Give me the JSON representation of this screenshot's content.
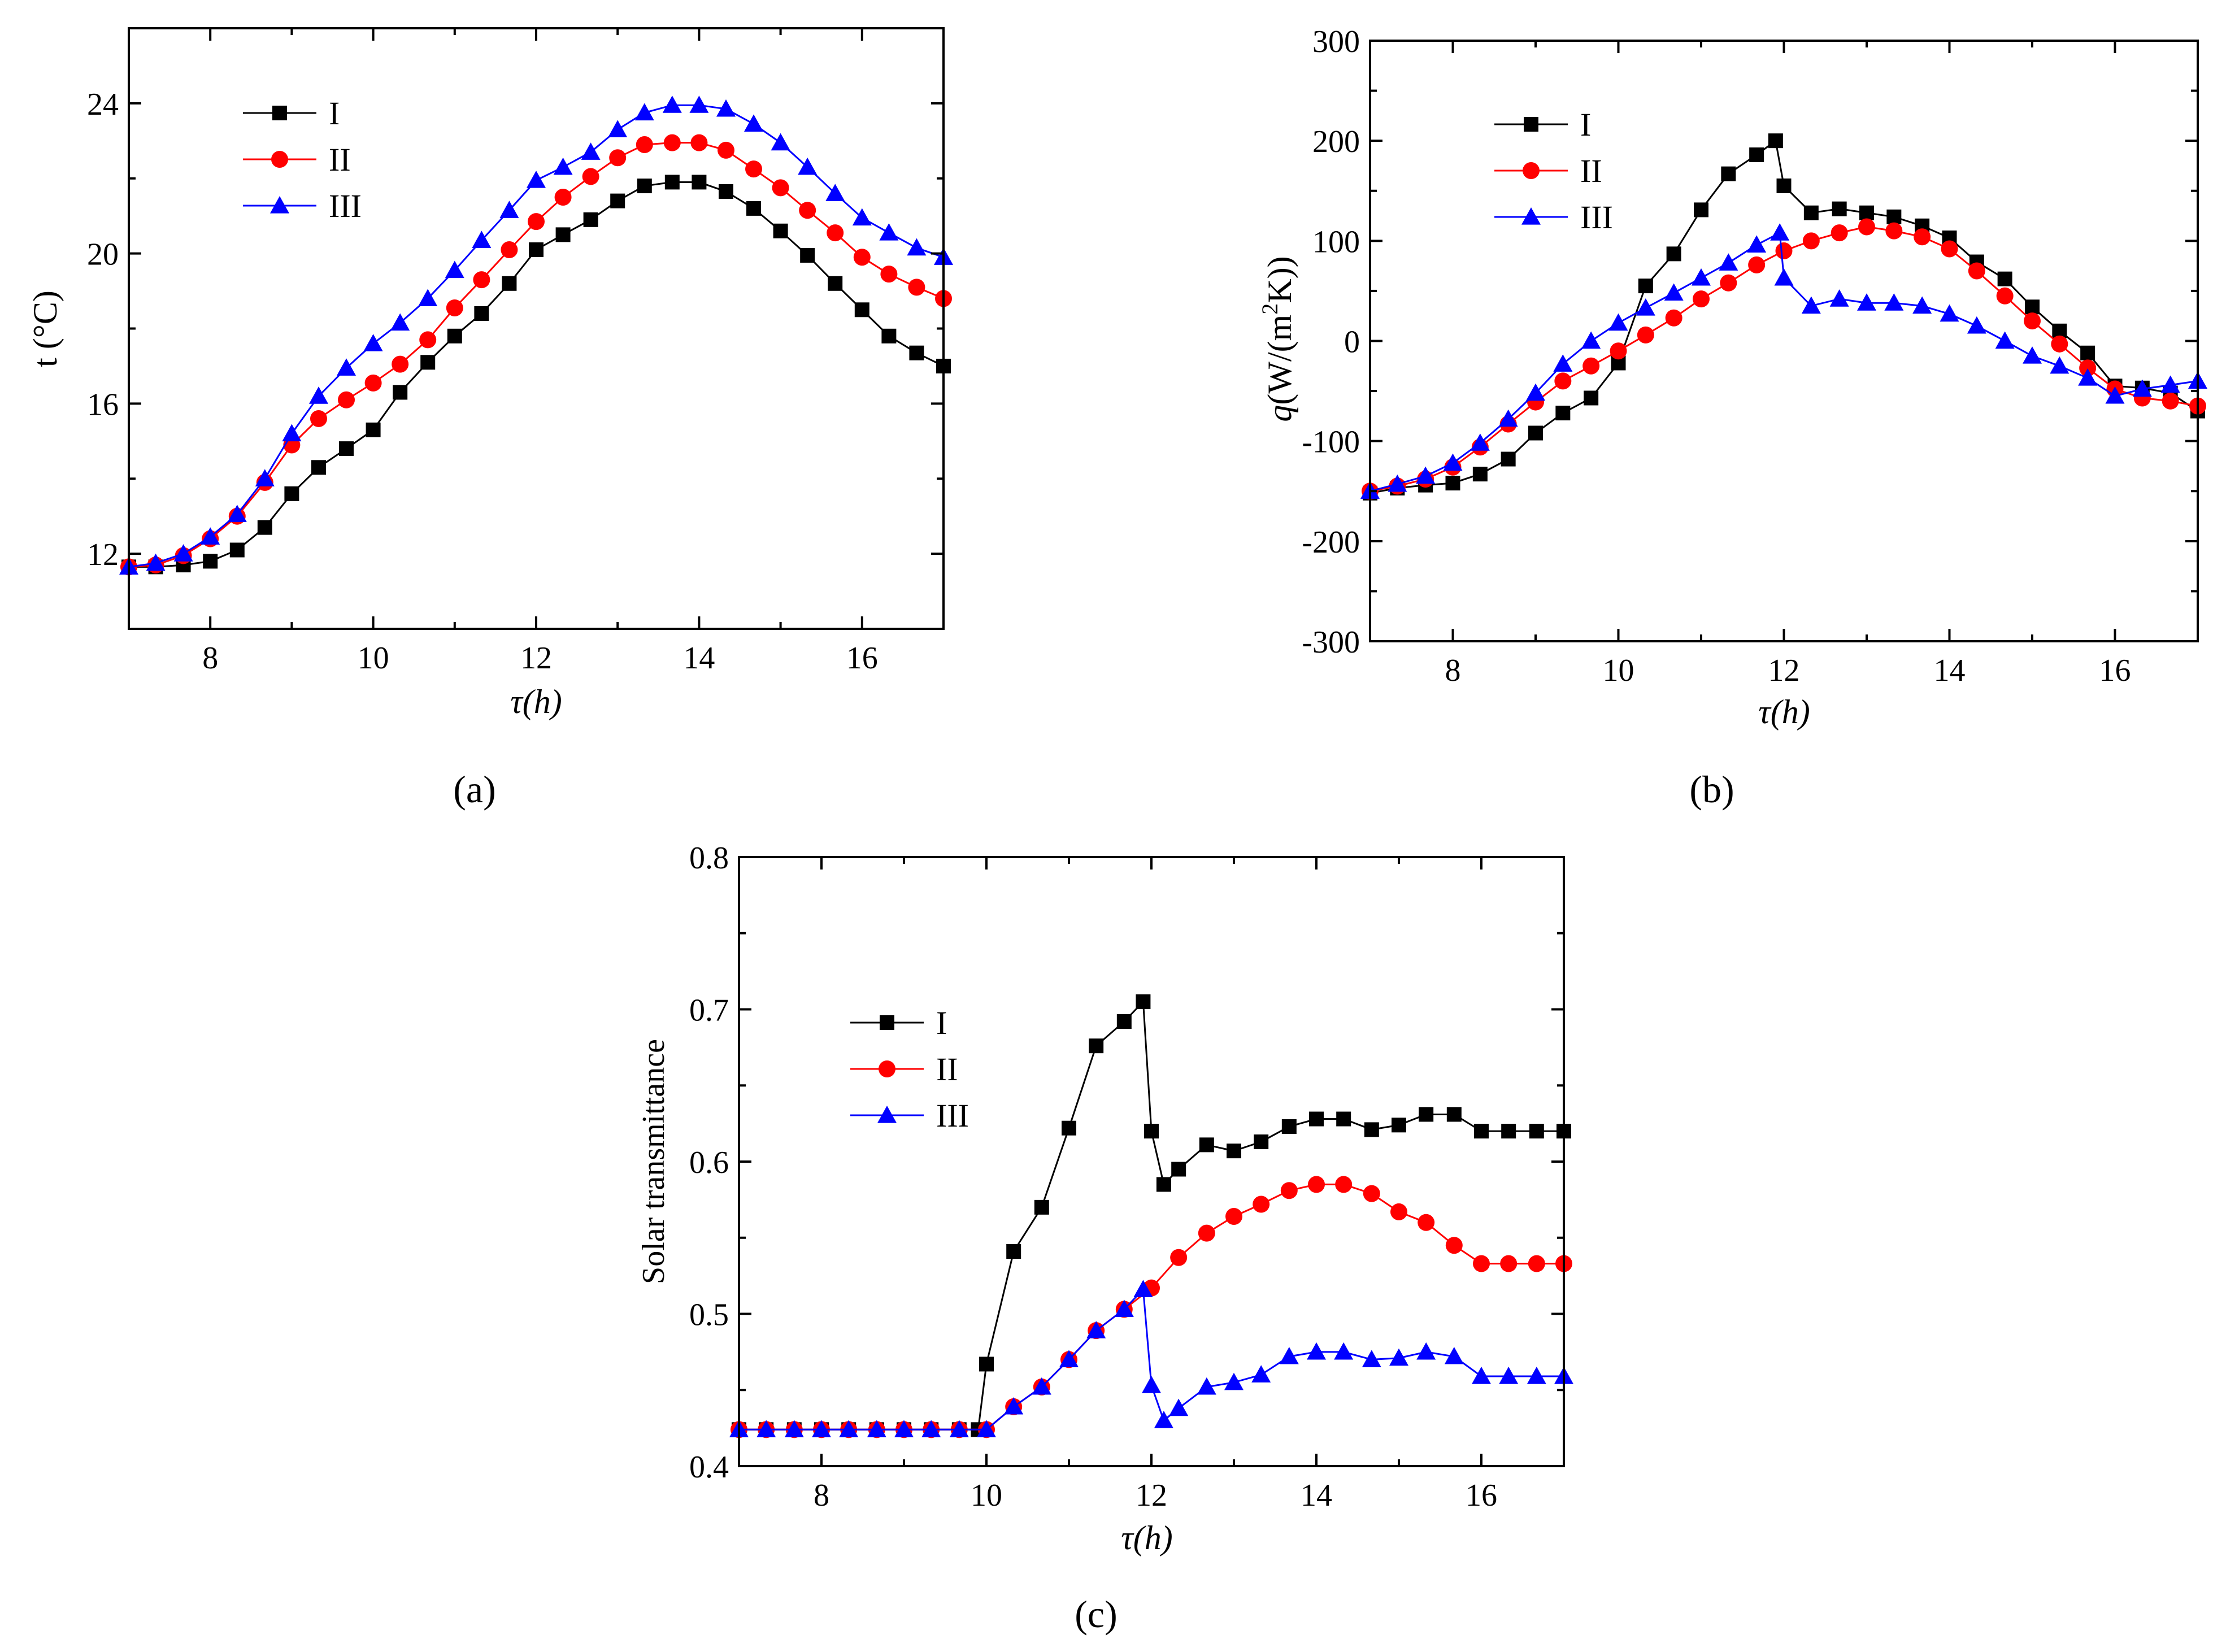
{
  "figure": {
    "panel_labels": [
      "(a)",
      "(b)",
      "(c)"
    ]
  },
  "chart_data": [
    {
      "type": "line",
      "panel": "(a)",
      "title": "",
      "xlabel": "τ(h)",
      "ylabel": "t (°C)",
      "xlim": [
        7,
        17
      ],
      "ylim": [
        10,
        26
      ],
      "xticks": [
        8,
        10,
        12,
        14,
        16
      ],
      "yticks": [
        12,
        16,
        20,
        24
      ],
      "legend_position": "top-left",
      "grid": false,
      "series": [
        {
          "name": "I",
          "marker": "square",
          "color": "#000000",
          "x": [
            7.0,
            7.33,
            7.67,
            8.0,
            8.33,
            8.67,
            9.0,
            9.33,
            9.67,
            10.0,
            10.33,
            10.67,
            11.0,
            11.33,
            11.67,
            12.0,
            12.33,
            12.67,
            13.0,
            13.33,
            13.67,
            14.0,
            14.33,
            14.67,
            15.0,
            15.33,
            15.67,
            16.0,
            16.33,
            16.67,
            17.0
          ],
          "y": [
            11.65,
            11.65,
            11.7,
            11.8,
            12.1,
            12.7,
            13.6,
            14.3,
            14.8,
            15.3,
            16.3,
            17.1,
            17.8,
            18.4,
            19.2,
            20.1,
            20.5,
            20.9,
            21.4,
            21.8,
            21.9,
            21.9,
            21.65,
            21.2,
            20.6,
            19.95,
            19.2,
            18.5,
            17.8,
            17.35,
            17.0
          ]
        },
        {
          "name": "II",
          "marker": "circle",
          "color": "#ff0000",
          "x": [
            7.0,
            7.33,
            7.67,
            8.0,
            8.33,
            8.67,
            9.0,
            9.33,
            9.67,
            10.0,
            10.33,
            10.67,
            11.0,
            11.33,
            11.67,
            12.0,
            12.33,
            12.67,
            13.0,
            13.33,
            13.67,
            14.0,
            14.33,
            14.67,
            15.0,
            15.33,
            15.67,
            16.0,
            16.33,
            16.67,
            17.0
          ],
          "y": [
            11.65,
            11.7,
            11.95,
            12.4,
            13.0,
            13.9,
            14.9,
            15.6,
            16.1,
            16.55,
            17.05,
            17.7,
            18.55,
            19.3,
            20.1,
            20.85,
            21.5,
            22.05,
            22.55,
            22.9,
            22.95,
            22.95,
            22.75,
            22.25,
            21.75,
            21.15,
            20.55,
            19.9,
            19.45,
            19.1,
            18.8
          ]
        },
        {
          "name": "III",
          "marker": "triangle",
          "color": "#0000ff",
          "x": [
            7.0,
            7.33,
            7.67,
            8.0,
            8.33,
            8.67,
            9.0,
            9.33,
            9.67,
            10.0,
            10.33,
            10.67,
            11.0,
            11.33,
            11.67,
            12.0,
            12.33,
            12.67,
            13.0,
            13.33,
            13.67,
            14.0,
            14.33,
            14.67,
            15.0,
            15.33,
            15.67,
            16.0,
            16.33,
            16.67,
            17.0
          ],
          "y": [
            11.65,
            11.75,
            12.0,
            12.45,
            13.05,
            14.0,
            15.2,
            16.2,
            16.95,
            17.6,
            18.15,
            18.8,
            19.55,
            20.35,
            21.15,
            21.95,
            22.3,
            22.7,
            23.3,
            23.75,
            23.95,
            23.95,
            23.85,
            23.45,
            22.95,
            22.3,
            21.6,
            20.95,
            20.55,
            20.15,
            19.9
          ]
        }
      ]
    },
    {
      "type": "line",
      "panel": "(b)",
      "title": "",
      "xlabel": "τ(h)",
      "ylabel": "q(W/(m2K))",
      "ylabel_parts": [
        "q",
        "(W/(m",
        "2",
        "K))"
      ],
      "xlim": [
        7,
        17
      ],
      "ylim": [
        -300,
        300
      ],
      "xticks": [
        8,
        10,
        12,
        14,
        16
      ],
      "yticks": [
        -300,
        -200,
        -100,
        0,
        100,
        200,
        300
      ],
      "legend_position": "top-left",
      "grid": false,
      "series": [
        {
          "name": "I",
          "marker": "square",
          "color": "#000000",
          "x": [
            7.0,
            7.33,
            7.67,
            8.0,
            8.33,
            8.67,
            9.0,
            9.33,
            9.67,
            10.0,
            10.33,
            10.67,
            11.0,
            11.33,
            11.67,
            11.9,
            12.0,
            12.33,
            12.67,
            13.0,
            13.33,
            13.67,
            14.0,
            14.33,
            14.67,
            15.0,
            15.33,
            15.67,
            16.0,
            16.33,
            16.67,
            17.0
          ],
          "y": [
            -152,
            -147,
            -144,
            -142,
            -133,
            -118,
            -92,
            -72,
            -57,
            -22,
            55,
            87,
            131,
            167,
            186,
            200,
            155,
            128,
            132,
            128,
            124,
            115,
            103,
            79,
            62,
            34,
            10,
            -12,
            -45,
            -47,
            -52,
            -70
          ]
        },
        {
          "name": "II",
          "marker": "circle",
          "color": "#ff0000",
          "x": [
            7.0,
            7.33,
            7.67,
            8.0,
            8.33,
            8.67,
            9.0,
            9.33,
            9.67,
            10.0,
            10.33,
            10.67,
            11.0,
            11.33,
            11.67,
            12.0,
            12.33,
            12.67,
            13.0,
            13.33,
            13.67,
            14.0,
            14.33,
            14.67,
            15.0,
            15.33,
            15.67,
            16.0,
            16.33,
            16.67,
            17.0
          ],
          "y": [
            -150,
            -145,
            -138,
            -126,
            -106,
            -83,
            -61,
            -40,
            -25,
            -10,
            6,
            23,
            42,
            58,
            76,
            90,
            100,
            108,
            114,
            110,
            104,
            92,
            70,
            45,
            20,
            -3,
            -27,
            -48,
            -57,
            -60,
            -65
          ]
        },
        {
          "name": "III",
          "marker": "triangle",
          "color": "#0000ff",
          "x": [
            7.0,
            7.33,
            7.67,
            8.0,
            8.33,
            8.67,
            9.0,
            9.33,
            9.67,
            10.0,
            10.33,
            10.67,
            11.0,
            11.33,
            11.67,
            11.95,
            12.0,
            12.33,
            12.67,
            13.0,
            13.33,
            13.67,
            14.0,
            14.33,
            14.67,
            15.0,
            15.33,
            15.67,
            16.0,
            16.33,
            16.67,
            17.0
          ],
          "y": [
            -150,
            -143,
            -135,
            -122,
            -102,
            -78,
            -52,
            -23,
            0,
            18,
            33,
            48,
            63,
            78,
            96,
            108,
            63,
            35,
            42,
            38,
            38,
            35,
            27,
            15,
            0,
            -15,
            -25,
            -37,
            -55,
            -48,
            -44,
            -40
          ]
        }
      ]
    },
    {
      "type": "line",
      "panel": "(c)",
      "title": "",
      "xlabel": "τ(h)",
      "ylabel": "Solar transmittance",
      "xlim": [
        7,
        17
      ],
      "ylim": [
        0.4,
        0.8
      ],
      "xticks": [
        8,
        10,
        12,
        14,
        16
      ],
      "yticks": [
        0.4,
        0.5,
        0.6,
        0.7,
        0.8
      ],
      "legend_position": "top-left",
      "grid": false,
      "series": [
        {
          "name": "I",
          "marker": "square",
          "color": "#000000",
          "x": [
            7.0,
            7.33,
            7.67,
            8.0,
            8.33,
            8.67,
            9.0,
            9.33,
            9.67,
            9.9,
            10.0,
            10.33,
            10.67,
            11.0,
            11.33,
            11.67,
            11.9,
            12.0,
            12.15,
            12.33,
            12.67,
            13.0,
            13.33,
            13.67,
            14.0,
            14.33,
            14.67,
            15.0,
            15.33,
            15.67,
            16.0,
            16.33,
            16.67,
            17.0
          ],
          "y": [
            0.424,
            0.424,
            0.424,
            0.424,
            0.424,
            0.424,
            0.424,
            0.424,
            0.424,
            0.424,
            0.467,
            0.541,
            0.57,
            0.622,
            0.676,
            0.692,
            0.705,
            0.62,
            0.585,
            0.595,
            0.611,
            0.607,
            0.613,
            0.623,
            0.628,
            0.628,
            0.621,
            0.624,
            0.631,
            0.631,
            0.62,
            0.62,
            0.62,
            0.62
          ]
        },
        {
          "name": "II",
          "marker": "circle",
          "color": "#ff0000",
          "x": [
            7.0,
            7.33,
            7.67,
            8.0,
            8.33,
            8.67,
            9.0,
            9.33,
            9.67,
            10.0,
            10.33,
            10.67,
            11.0,
            11.33,
            11.67,
            12.0,
            12.33,
            12.67,
            13.0,
            13.33,
            13.67,
            14.0,
            14.33,
            14.67,
            15.0,
            15.33,
            15.67,
            16.0,
            16.33,
            16.67,
            17.0
          ],
          "y": [
            0.424,
            0.424,
            0.424,
            0.424,
            0.424,
            0.424,
            0.424,
            0.424,
            0.424,
            0.424,
            0.439,
            0.452,
            0.47,
            0.489,
            0.503,
            0.517,
            0.537,
            0.553,
            0.564,
            0.572,
            0.581,
            0.585,
            0.585,
            0.579,
            0.567,
            0.56,
            0.545,
            0.533,
            0.533,
            0.533,
            0.533
          ]
        },
        {
          "name": "III",
          "marker": "triangle",
          "color": "#0000ff",
          "x": [
            7.0,
            7.33,
            7.67,
            8.0,
            8.33,
            8.67,
            9.0,
            9.33,
            9.67,
            10.0,
            10.33,
            10.67,
            11.0,
            11.33,
            11.67,
            11.9,
            12.0,
            12.15,
            12.33,
            12.67,
            13.0,
            13.33,
            13.67,
            14.0,
            14.33,
            14.67,
            15.0,
            15.33,
            15.67,
            16.0,
            16.33,
            16.67,
            17.0
          ],
          "y": [
            0.424,
            0.424,
            0.424,
            0.424,
            0.424,
            0.424,
            0.424,
            0.424,
            0.424,
            0.424,
            0.439,
            0.452,
            0.47,
            0.489,
            0.503,
            0.516,
            0.453,
            0.43,
            0.438,
            0.452,
            0.455,
            0.46,
            0.472,
            0.475,
            0.475,
            0.47,
            0.471,
            0.475,
            0.472,
            0.459,
            0.459,
            0.459,
            0.459
          ]
        }
      ]
    }
  ]
}
